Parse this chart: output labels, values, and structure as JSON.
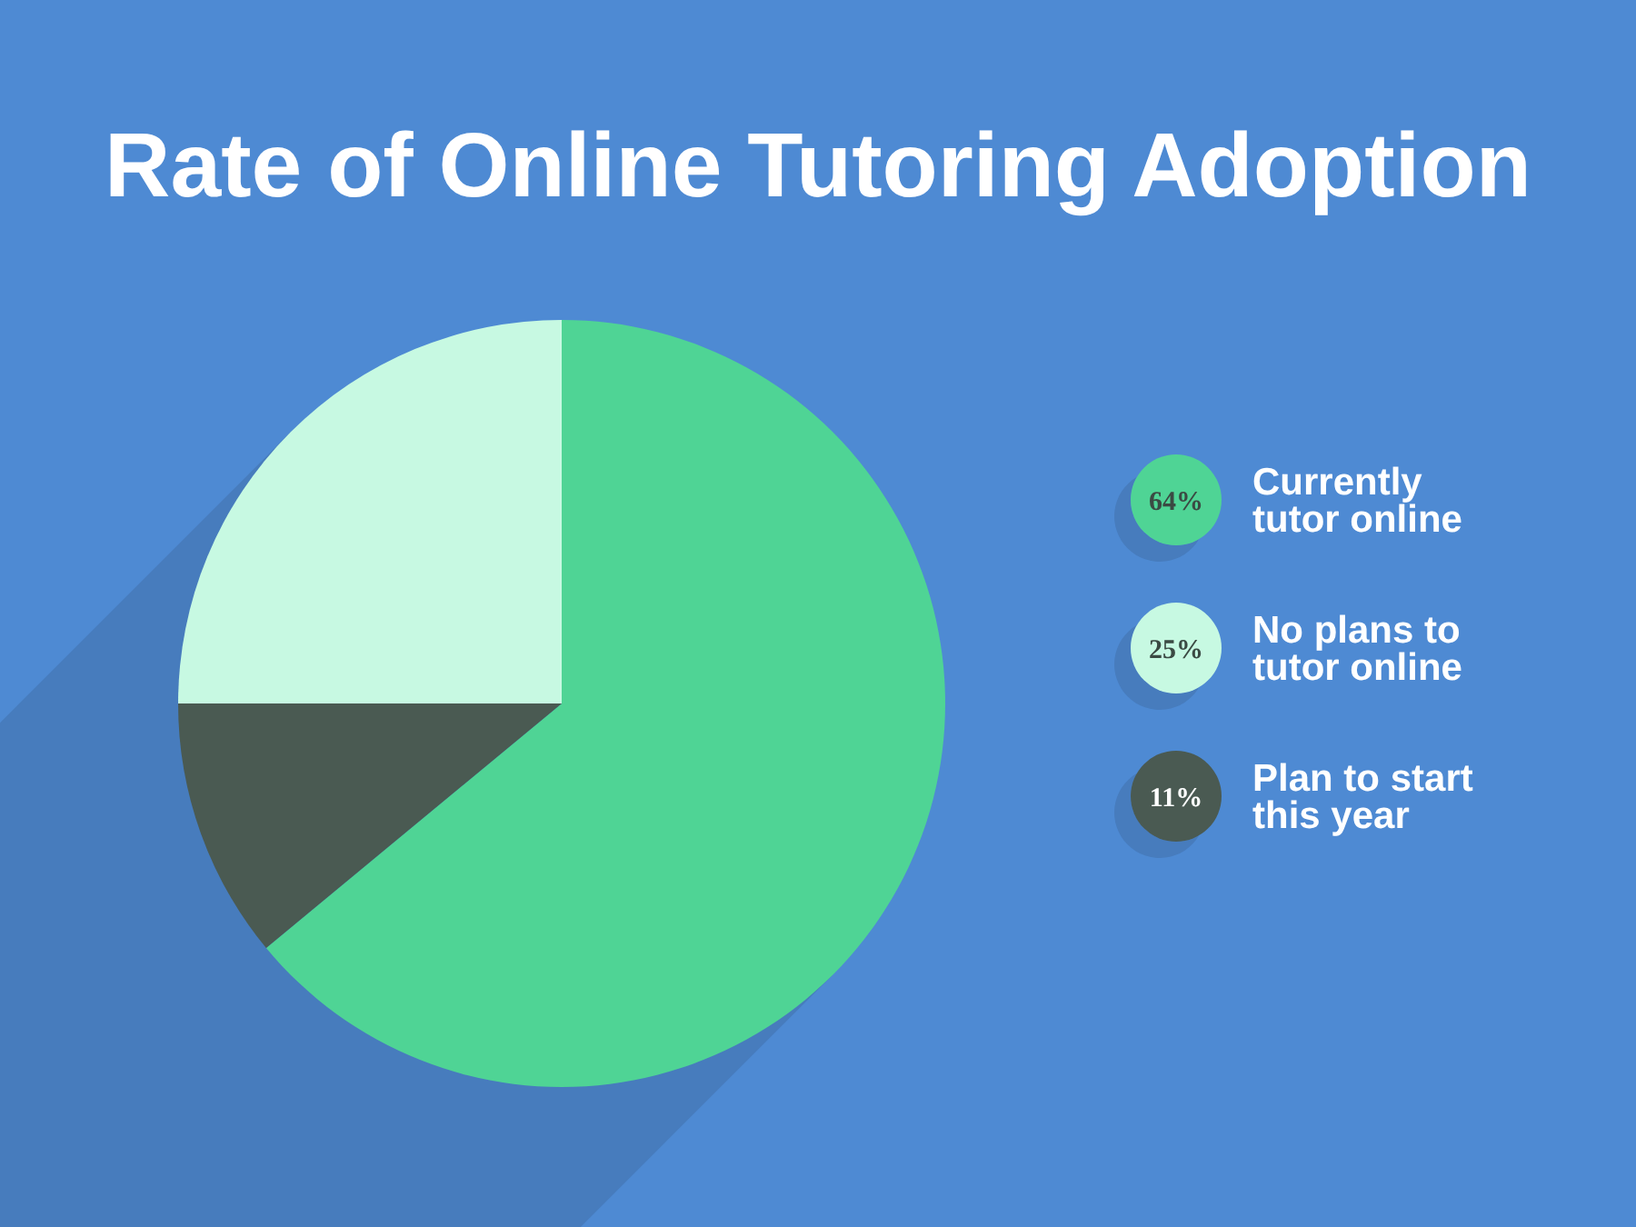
{
  "chart_data": {
    "type": "pie",
    "title": "Rate of Online Tutoring Adoption",
    "categories": [
      "Currently tutor online",
      "No plans to tutor online",
      "Plan to start this year"
    ],
    "values": [
      64,
      25,
      11
    ],
    "colors": [
      "#4fd495",
      "#c7f9e2",
      "#4a5a52"
    ],
    "value_labels": [
      "64%",
      "25%",
      "11%"
    ],
    "legend": "right"
  }
}
